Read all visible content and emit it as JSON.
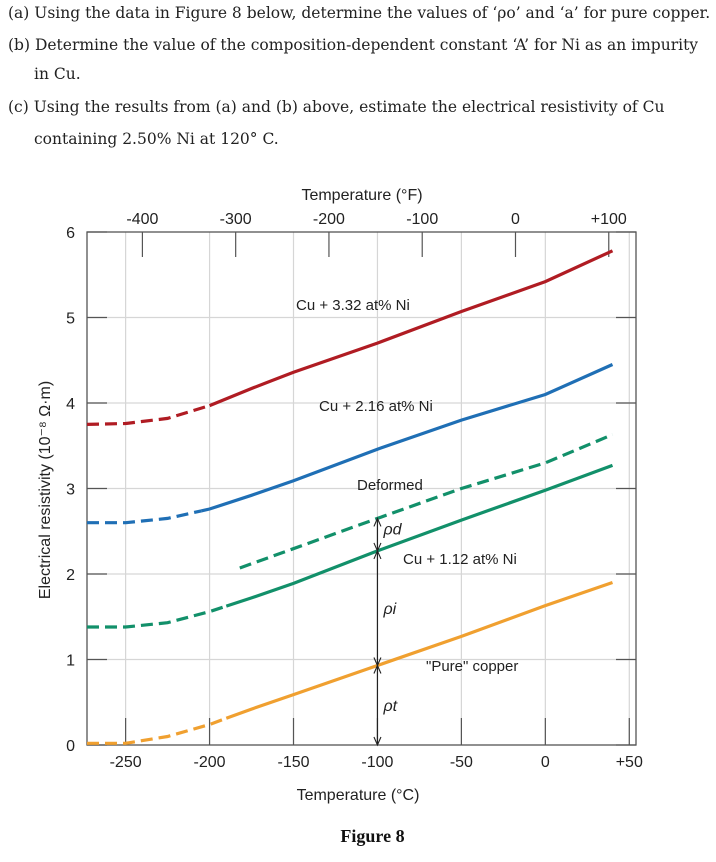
{
  "questions": {
    "a": "(a) Using the data in Figure 8 below, determine the values of ‘ρo’ and ‘a’ for pure copper.",
    "b_line1": "(b) Determine the value of the composition-dependent constant ‘A’ for Ni as an impurity",
    "b_line2": "in Cu.",
    "c_line1": "(c) Using the results from (a) and (b) above, estimate the electrical resistivity of Cu",
    "c_line2": "containing 2.50% Ni at 120° C."
  },
  "caption": "Figure 8",
  "chart_data": {
    "type": "line",
    "xlabel": "Temperature (°C)",
    "x2label": "Temperature (°F)",
    "ylabel": "Electrical resistivity (10⁻⁸ Ω·m)",
    "xlim": [
      -273,
      54
    ],
    "ylim": [
      0,
      6
    ],
    "xticks": [
      -250,
      -200,
      -150,
      -100,
      -50,
      0,
      50
    ],
    "xtick_labels": [
      "-250",
      "-200",
      "-150",
      "-100",
      "-50",
      "0",
      "+50"
    ],
    "x2ticks": [
      -400,
      -300,
      -200,
      -100,
      0,
      100
    ],
    "x2tick_labels": [
      "-400",
      "-300",
      "-200",
      "-100",
      "0",
      "+100"
    ],
    "yticks": [
      0,
      1,
      2,
      3,
      4,
      5,
      6
    ],
    "ytick_labels": [
      "0",
      "1",
      "2",
      "3",
      "4",
      "5",
      "6"
    ],
    "grid": true,
    "series": [
      {
        "name": "Cu + 3.32 at% Ni",
        "color": "#b01c23",
        "dashed_until": -200,
        "x": [
          -273,
          -250,
          -225,
          -200,
          -175,
          -150,
          -100,
          -50,
          0,
          40
        ],
        "y": [
          3.75,
          3.76,
          3.82,
          3.97,
          4.17,
          4.36,
          4.7,
          5.07,
          5.42,
          5.78
        ]
      },
      {
        "name": "Cu + 2.16 at% Ni",
        "color": "#1f6fb5",
        "dashed_until": -205,
        "x": [
          -273,
          -250,
          -225,
          -200,
          -175,
          -150,
          -100,
          -50,
          0,
          40
        ],
        "y": [
          2.6,
          2.6,
          2.65,
          2.76,
          2.92,
          3.09,
          3.46,
          3.8,
          4.1,
          4.45
        ]
      },
      {
        "name": "Deformed",
        "color": "#12906a",
        "dashed_until": 40,
        "x": [
          -182,
          -100,
          -50,
          0,
          40
        ],
        "y": [
          2.07,
          2.65,
          3.0,
          3.3,
          3.63
        ]
      },
      {
        "name": "Cu + 1.12 at% Ni",
        "color": "#12906a",
        "dashed_until": -190,
        "x": [
          -273,
          -250,
          -225,
          -200,
          -175,
          -150,
          -100,
          -50,
          0,
          40
        ],
        "y": [
          1.38,
          1.38,
          1.43,
          1.56,
          1.72,
          1.89,
          2.27,
          2.63,
          2.98,
          3.27
        ]
      },
      {
        "name": "\"Pure\" copper",
        "color": "#f0a030",
        "dashed_until": -190,
        "x": [
          -273,
          -250,
          -225,
          -200,
          -175,
          -150,
          -100,
          -50,
          0,
          40
        ],
        "y": [
          0.02,
          0.02,
          0.1,
          0.24,
          0.42,
          0.59,
          0.93,
          1.27,
          1.63,
          1.9
        ]
      }
    ],
    "annotations": {
      "rho_d": "ρd",
      "rho_i": "ρi",
      "rho_t": "ρt",
      "arrow_x": -100
    }
  }
}
